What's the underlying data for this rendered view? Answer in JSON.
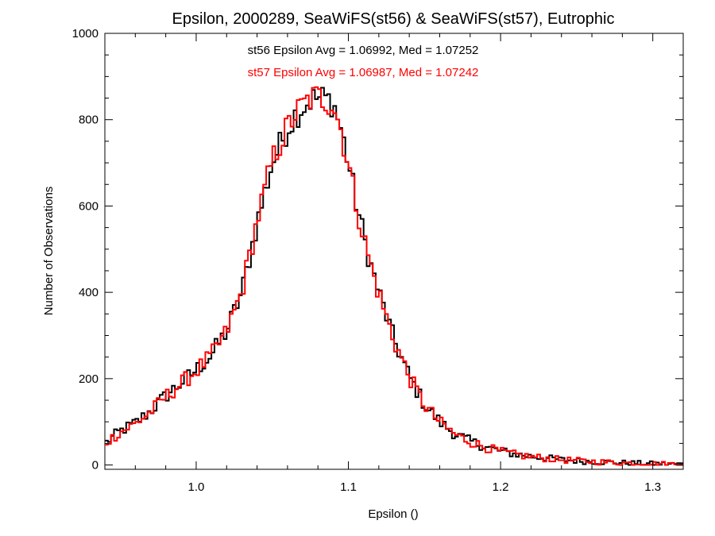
{
  "chart_data": {
    "type": "line",
    "step": true,
    "title": "Epsilon, 2000289, SeaWiFS(st56) & SeaWiFS(st57), Eutrophic",
    "xlabel": "Epsilon ()",
    "ylabel": "Number of Observations",
    "xlim": [
      0.94,
      1.32
    ],
    "ylim": [
      -10,
      1000
    ],
    "x_ticks": [
      1.0,
      1.1,
      1.2,
      1.3
    ],
    "x_tick_labels": [
      "1.0",
      "1.1",
      "1.2",
      "1.3"
    ],
    "y_ticks": [
      0,
      200,
      400,
      600,
      800,
      1000
    ],
    "y_tick_labels": [
      "0",
      "200",
      "400",
      "600",
      "800",
      "1000"
    ],
    "grid": false,
    "annotations": [
      {
        "text": "st56 Epsilon Avg = 1.06992, Med = 1.07252",
        "color": "#000000"
      },
      {
        "text": "st57 Epsilon Avg = 1.06987, Med = 1.07242",
        "color": "#ff0000"
      }
    ],
    "series": [
      {
        "color": "#000000",
        "x": [
          0.94,
          0.95,
          0.96,
          0.97,
          0.98,
          0.99,
          1.0,
          1.01,
          1.02,
          1.03,
          1.04,
          1.05,
          1.06,
          1.065,
          1.07,
          1.075,
          1.08,
          1.085,
          1.09,
          1.095,
          1.1,
          1.105,
          1.11,
          1.115,
          1.12,
          1.13,
          1.14,
          1.15,
          1.16,
          1.17,
          1.18,
          1.19,
          1.2,
          1.21,
          1.22,
          1.24,
          1.26,
          1.28,
          1.3,
          1.32
        ],
        "y": [
          50,
          78,
          97,
          125,
          160,
          190,
          220,
          255,
          310,
          400,
          560,
          700,
          780,
          810,
          830,
          845,
          850,
          848,
          840,
          780,
          700,
          610,
          530,
          460,
          400,
          290,
          205,
          140,
          100,
          72,
          55,
          42,
          32,
          25,
          20,
          12,
          8,
          5,
          3,
          2
        ]
      },
      {
        "color": "#ff0000",
        "x": [
          0.94,
          0.95,
          0.96,
          0.97,
          0.98,
          0.99,
          1.0,
          1.01,
          1.02,
          1.03,
          1.04,
          1.05,
          1.06,
          1.065,
          1.07,
          1.075,
          1.08,
          1.085,
          1.09,
          1.095,
          1.1,
          1.105,
          1.11,
          1.115,
          1.12,
          1.13,
          1.14,
          1.15,
          1.16,
          1.17,
          1.18,
          1.19,
          1.2,
          1.21,
          1.22,
          1.24,
          1.26,
          1.28,
          1.3,
          1.32
        ],
        "y": [
          50,
          76,
          95,
          123,
          158,
          188,
          218,
          253,
          308,
          402,
          565,
          705,
          782,
          812,
          832,
          848,
          853,
          846,
          838,
          778,
          698,
          608,
          528,
          458,
          398,
          288,
          204,
          139,
          99,
          71,
          54,
          41,
          31,
          24,
          19,
          12,
          8,
          5,
          3,
          2
        ]
      }
    ]
  }
}
